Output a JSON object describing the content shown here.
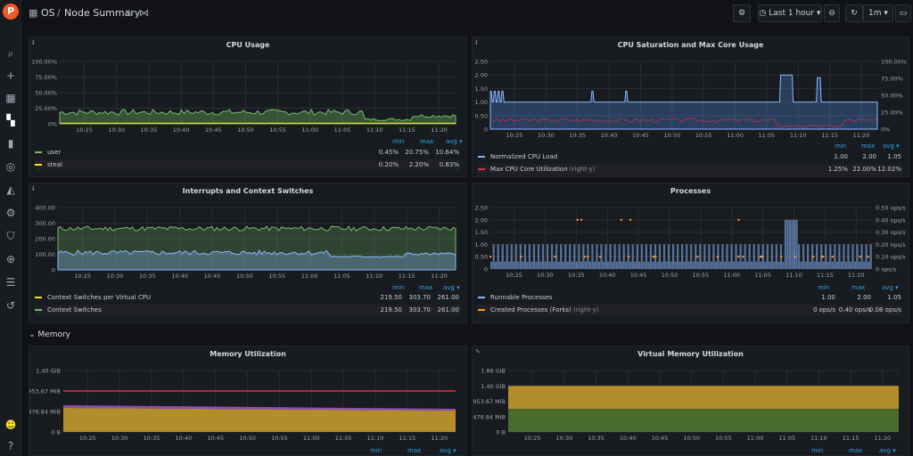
{
  "sidebar": {
    "logo": "P",
    "icons": [
      "search-icon",
      "plus-icon",
      "apps-icon",
      "dashboards-icon",
      "chart-icon",
      "compass-icon",
      "bell-icon",
      "gear-icon",
      "shield-icon",
      "zoom-icon",
      "database-icon",
      "history-icon"
    ],
    "bottom": [
      "avatar",
      "help-icon"
    ]
  },
  "topbar": {
    "folder": "OS",
    "title": "Node Summary",
    "time_range": "Last 1 hour",
    "refresh": "1m"
  },
  "section_memory": "Memory",
  "xticks": [
    "10:25",
    "10:30",
    "10:35",
    "10:40",
    "10:45",
    "10:50",
    "10:55",
    "11:00",
    "11:05",
    "11:10",
    "11:15",
    "11:20"
  ],
  "legend_headers": {
    "min": "min",
    "max": "max",
    "avg": "avg ▾"
  },
  "panels": {
    "cpu_usage": {
      "title": "CPU Usage",
      "yticks": [
        "100.00%",
        "75.00%",
        "50.00%",
        "25.00%",
        "0%"
      ],
      "legend": [
        {
          "name": "user",
          "color": "#73bf69",
          "min": "0.45%",
          "max": "20.75%",
          "avg": "10.64%"
        },
        {
          "name": "steal",
          "color": "#fade2a",
          "min": "0.20%",
          "max": "2.20%",
          "avg": "0.83%"
        }
      ]
    },
    "cpu_sat": {
      "title": "CPU Saturation and Max Core Usage",
      "yticks": [
        "2.50",
        "2.00",
        "1.50",
        "1.00",
        "0.50",
        "0"
      ],
      "y2ticks": [
        "100.00%",
        "75.00%",
        "50.00%",
        "25.00%",
        "0%"
      ],
      "legend": [
        {
          "name": "Normalized CPU Load",
          "suffix": "",
          "color": "#8ab8ff",
          "min": "1.00",
          "max": "2.00",
          "avg": "1.05"
        },
        {
          "name": "Max CPU Core Utilization",
          "suffix": "(right-y)",
          "color": "#e02f44",
          "min": "1.25%",
          "max": "22.00%",
          "avg": "12.02%"
        }
      ]
    },
    "interrupts": {
      "title": "Interrupts and Context Switches",
      "yticks": [
        "400.00",
        "300.00",
        "200.00",
        "100.00",
        "0"
      ],
      "legend": [
        {
          "name": "Context Switches per Virtual CPU",
          "color": "#fade2a",
          "min": "219.50",
          "max": "303.70",
          "avg": "261.00"
        },
        {
          "name": "Context Switches",
          "color": "#73bf69",
          "min": "219.50",
          "max": "303.70",
          "avg": "261.00"
        }
      ]
    },
    "processes": {
      "title": "Processes",
      "yticks": [
        "2.50",
        "2.00",
        "1.50",
        "1.00",
        "0.50",
        "0"
      ],
      "y2ticks": [
        "0.50 ops/s",
        "0.40 ops/s",
        "0.30 ops/s",
        "0.20 ops/s",
        "0.10 ops/s",
        "0 ops/s"
      ],
      "legend": [
        {
          "name": "Runnable Processes",
          "suffix": "",
          "color": "#8ab8ff",
          "min": "1.00",
          "max": "2.00",
          "avg": "1.05"
        },
        {
          "name": "Created Processes (Forks)",
          "suffix": "(right-y)",
          "color": "#ff9830",
          "min": "0 ops/s",
          "max": "0.40 ops/s",
          "avg": "0.08 ops/s"
        }
      ]
    },
    "mem_util": {
      "title": "Memory Utilization",
      "yticks": [
        "1.40 GiB",
        "953.67 MiB",
        "476.84 MiB",
        "0 B"
      ]
    },
    "vmem_util": {
      "title": "Virtual Memory Utilization",
      "yticks": [
        "1.86 GiB",
        "1.40 GiB",
        "953.67 MiB",
        "476.84 MiB",
        "0 B"
      ]
    }
  }
}
